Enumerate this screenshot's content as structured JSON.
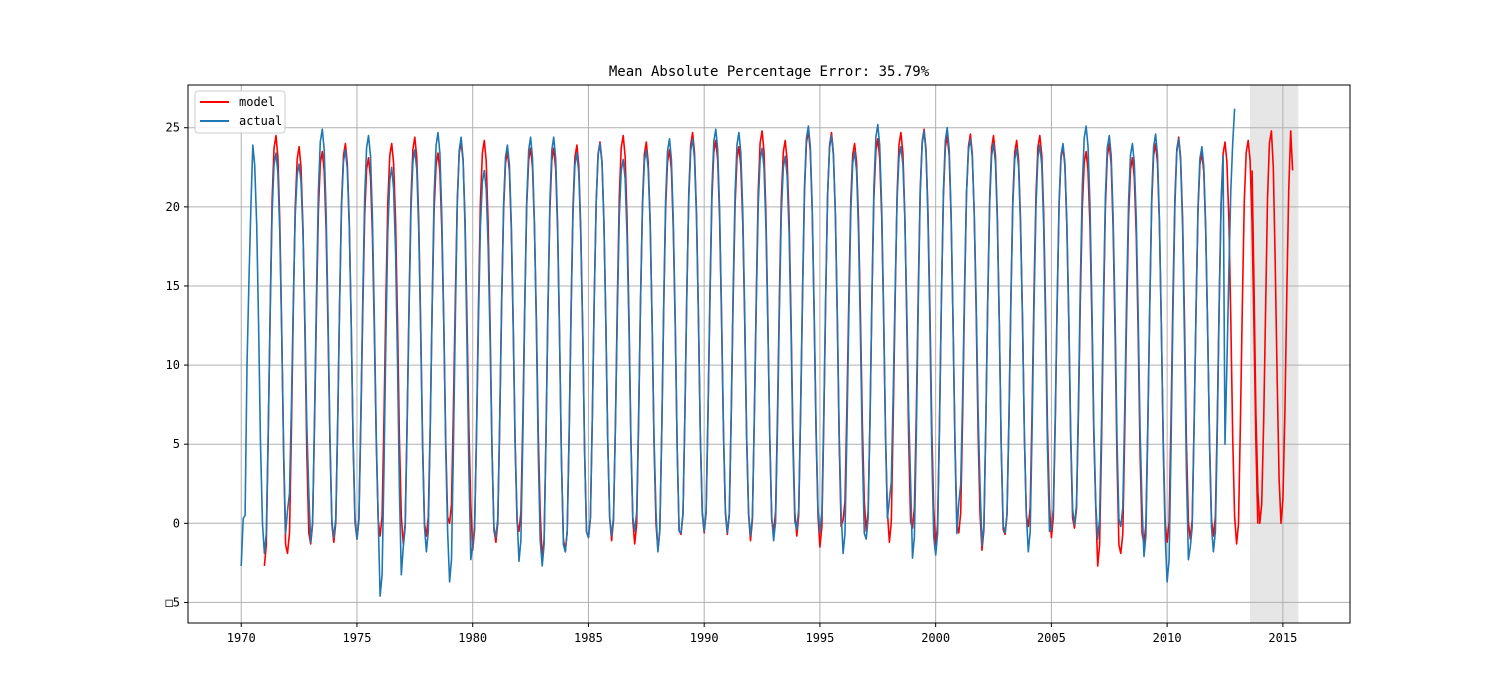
{
  "chart_data": {
    "type": "line",
    "title": "Mean Absolute Percentage Error: 35.79%",
    "xlabel": "",
    "ylabel": "",
    "xlim": [
      1967.7,
      2017.9
    ],
    "ylim": [
      -6.3,
      27.7
    ],
    "x_ticks": [
      1970,
      1975,
      1980,
      1985,
      1990,
      1995,
      2000,
      2005,
      2010,
      2015
    ],
    "x_tick_labels": [
      "1970",
      "1975",
      "1980",
      "1985",
      "1990",
      "1995",
      "2000",
      "2005",
      "2010",
      "2015"
    ],
    "y_ticks": [
      -5,
      0,
      5,
      10,
      15,
      20,
      25
    ],
    "y_tick_labels": [
      "□5",
      "0",
      "5",
      "10",
      "15",
      "20",
      "25"
    ],
    "grid": true,
    "legend_position": "top-left",
    "highlight_region": {
      "x_start": 2013.58,
      "x_end": 2015.67,
      "color": "#e6e6e6"
    },
    "series": [
      {
        "name": "model",
        "color": "#ff0000",
        "x_start": 1971.0,
        "x_step": 0.0833333,
        "peaks": [
          24.5,
          23.8,
          23.5,
          24.0,
          23.1,
          24.0,
          24.4,
          23.4,
          24.1,
          24.2,
          23.5,
          23.7,
          23.7,
          23.9,
          24.1,
          24.5,
          24.1,
          23.6,
          24.7,
          24.2,
          23.8,
          24.8,
          24.2,
          24.8,
          24.7,
          24.0,
          24.3,
          24.7,
          24.9,
          24.5,
          24.6,
          24.5,
          24.2
        ],
        "troughs": [
          -2.7,
          -1.9,
          -1.3,
          -1.2,
          -1.0,
          -0.8,
          -1.3,
          -0.8,
          0.0,
          -1.7,
          -1.2,
          -0.5,
          -2.3,
          -1.8,
          -0.9,
          -1.1,
          -1.3,
          -1.7,
          -0.7,
          -0.6,
          -0.7,
          -1.1,
          -0.5,
          -0.8,
          -1.5,
          0.2,
          -0.5,
          -1.2,
          -0.3,
          -1.4,
          -0.6,
          -1.7,
          -0.7,
          -0.2,
          -0.9,
          -0.3
        ],
        "forecast": {
          "x_start": 2013.67,
          "values": [
            22.3,
            15.0,
            7.0,
            2.0,
            0.0,
            1.2,
            6.5,
            13.5,
            20.5,
            24.0,
            24.8,
            22.5,
            16.5,
            9.0,
            2.8,
            0.0,
            1.5,
            7.0,
            14.5,
            21.0,
            24.8,
            22.3
          ]
        }
      },
      {
        "name": "actual",
        "color": "#1f77b4",
        "x_start": 1970.0,
        "x_step": 0.0833333,
        "peaks": [
          23.9,
          23.4,
          22.7,
          24.9,
          23.6,
          24.5,
          22.5,
          23.6,
          24.7,
          24.4,
          22.3,
          23.9,
          24.4,
          24.4,
          23.4,
          24.0,
          23.0,
          23.6,
          24.3,
          24.3,
          24.9,
          24.7,
          23.7,
          23.2,
          25.1,
          24.5,
          23.5,
          25.2,
          23.8,
          24.8,
          25.0,
          24.3,
          24.0,
          23.7,
          23.9,
          24.0,
          25.1,
          24.5,
          24.0,
          24.6,
          24.3,
          23.8,
          24.0
        ],
        "troughs": [
          -1.3,
          -1.9,
          0.8,
          -1.2,
          -0.9,
          -1.0,
          -4.6,
          -1.5,
          -1.8,
          -3.7,
          -1.4,
          -0.9,
          -2.4,
          -2.7,
          -1.8,
          -0.9,
          -0.8,
          -0.5,
          -1.8,
          -0.6,
          -0.5,
          -0.6,
          -0.8,
          -1.1,
          -0.4,
          -0.6,
          -1.9,
          -1.0,
          1.5,
          -2.2,
          -2.0,
          1.3,
          -1.4,
          -0.6,
          -1.8,
          -0.3,
          -0.1,
          -1.0,
          -0.2,
          -2.1,
          -3.7,
          -1.5,
          -1.8
        ],
        "start_values": [
          -2.7,
          0.3,
          0.5,
          10.0,
          15.5,
          20.0
        ],
        "end_values": [
          5.0,
          10.0,
          16.0,
          21.0,
          24.0,
          26.2
        ]
      }
    ]
  }
}
